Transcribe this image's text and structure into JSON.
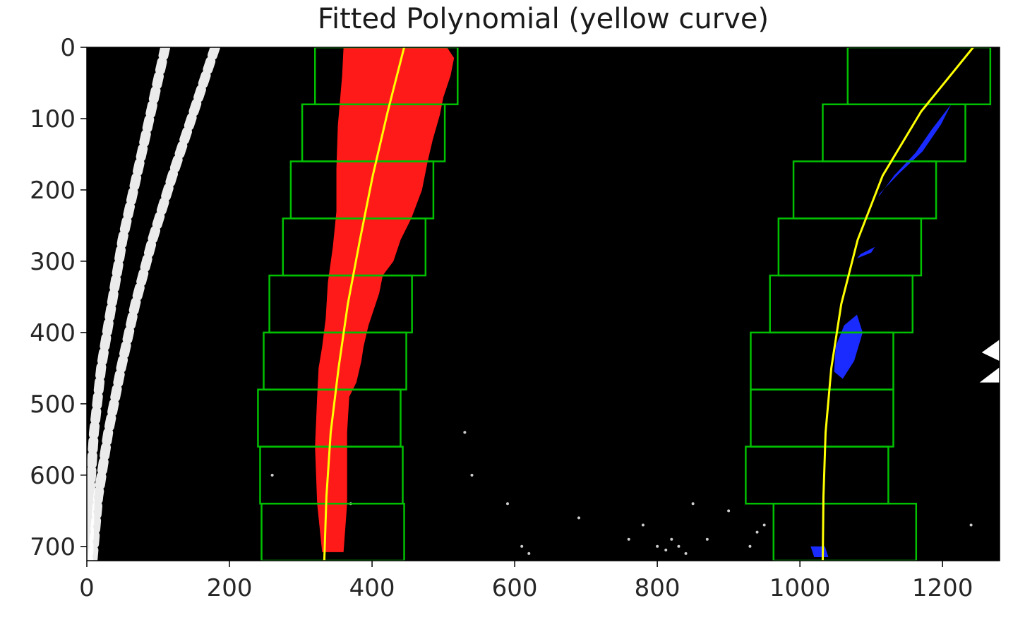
{
  "chart_data": {
    "type": "scatter",
    "title": "Fitted Polynomial (yellow curve)",
    "xlabel": "",
    "ylabel": "",
    "xlim": [
      0,
      1280
    ],
    "ylim": [
      720,
      0
    ],
    "x_ticks": [
      0,
      200,
      400,
      600,
      800,
      1000,
      1200
    ],
    "y_ticks": [
      0,
      100,
      200,
      300,
      400,
      500,
      600,
      700
    ],
    "background": "#000000",
    "colors": {
      "left_lane_pixels": "#ff1a1a",
      "right_lane_pixels": "#1a2bff",
      "fit_curve": "#ffff00",
      "window_boxes": "#00c000",
      "other_pixels": "#ffffff"
    },
    "fits": [
      {
        "name": "",
        "x": [
          445,
          422,
          401,
          383,
          366,
          353,
          342,
          336,
          333
        ],
        "y": [
          0,
          90,
          180,
          270,
          360,
          450,
          540,
          630,
          720
        ]
      },
      {
        "name": "",
        "x": [
          1243,
          1170,
          1116,
          1081,
          1058,
          1044,
          1036,
          1033,
          1032
        ],
        "y": [
          0,
          90,
          180,
          270,
          360,
          450,
          540,
          630,
          720
        ]
      }
    ],
    "left_windows": [
      {
        "x0": 320,
        "x1": 520,
        "y0": 0,
        "y1": 80
      },
      {
        "x0": 302,
        "x1": 502,
        "y0": 80,
        "y1": 160
      },
      {
        "x0": 286,
        "x1": 486,
        "y0": 160,
        "y1": 240
      },
      {
        "x0": 275,
        "x1": 475,
        "y0": 240,
        "y1": 320
      },
      {
        "x0": 256,
        "x1": 456,
        "y0": 320,
        "y1": 400
      },
      {
        "x0": 248,
        "x1": 448,
        "y0": 400,
        "y1": 480
      },
      {
        "x0": 240,
        "x1": 440,
        "y0": 480,
        "y1": 560
      },
      {
        "x0": 243,
        "x1": 443,
        "y0": 560,
        "y1": 640
      },
      {
        "x0": 245,
        "x1": 445,
        "y0": 640,
        "y1": 720
      }
    ],
    "right_windows": [
      {
        "x0": 1067,
        "x1": 1267,
        "y0": 0,
        "y1": 80
      },
      {
        "x0": 1032,
        "x1": 1232,
        "y0": 80,
        "y1": 160
      },
      {
        "x0": 991,
        "x1": 1191,
        "y0": 160,
        "y1": 240
      },
      {
        "x0": 970,
        "x1": 1170,
        "y0": 240,
        "y1": 320
      },
      {
        "x0": 958,
        "x1": 1158,
        "y0": 320,
        "y1": 400
      },
      {
        "x0": 931,
        "x1": 1131,
        "y0": 400,
        "y1": 480
      },
      {
        "x0": 931,
        "x1": 1131,
        "y0": 480,
        "y1": 560
      },
      {
        "x0": 924,
        "x1": 1124,
        "y0": 560,
        "y1": 640
      },
      {
        "x0": 963,
        "x1": 1163,
        "y0": 640,
        "y1": 720
      }
    ],
    "left_pixels_outline": {
      "x": [
        360,
        505,
        515,
        510,
        500,
        495,
        485,
        478,
        470,
        455,
        440,
        430,
        415,
        410,
        405,
        395,
        388,
        385,
        378,
        368,
        365,
        365,
        360,
        330,
        323,
        320,
        323,
        325,
        330,
        335,
        338,
        345,
        350,
        350,
        352,
        358,
        360
      ],
      "y": [
        0,
        0,
        15,
        40,
        70,
        95,
        130,
        160,
        200,
        240,
        270,
        300,
        320,
        345,
        360,
        390,
        420,
        440,
        470,
        490,
        540,
        640,
        708,
        708,
        640,
        560,
        490,
        450,
        420,
        380,
        330,
        280,
        230,
        170,
        110,
        40,
        0
      ]
    },
    "right_pixels_blobs": [
      {
        "x": [
          1212,
          1185,
          1162,
          1132,
          1110,
          1112,
          1140,
          1172,
          1198,
          1212
        ],
        "y": [
          80,
          115,
          148,
          180,
          210,
          205,
          176,
          146,
          108,
          80
        ]
      },
      {
        "x": [
          1080,
          1088,
          1076,
          1060,
          1048,
          1050,
          1062,
          1080
        ],
        "y": [
          375,
          400,
          440,
          465,
          455,
          420,
          390,
          375
        ]
      },
      {
        "x": [
          1085,
          1105,
          1100,
          1080,
          1085
        ],
        "y": [
          290,
          280,
          288,
          296,
          290
        ]
      },
      {
        "x": [
          1015,
          1035,
          1040,
          1020,
          1015
        ],
        "y": [
          700,
          700,
          715,
          715,
          700
        ]
      }
    ],
    "white_pixel_streaks": [
      {
        "x": [
          110,
          90,
          70,
          50,
          35,
          20,
          10,
          4,
          2
        ],
        "y": [
          0,
          90,
          180,
          270,
          360,
          450,
          540,
          630,
          720
        ]
      },
      {
        "x": [
          180,
          150,
          120,
          92,
          68,
          48,
          30,
          16,
          8
        ],
        "y": [
          0,
          90,
          180,
          270,
          360,
          450,
          540,
          630,
          720
        ]
      }
    ],
    "white_specks": {
      "x": [
        530,
        540,
        590,
        610,
        620,
        690,
        760,
        780,
        800,
        812,
        820,
        830,
        840,
        850,
        870,
        900,
        930,
        940,
        950,
        260,
        370,
        1240
      ],
      "y": [
        540,
        600,
        640,
        700,
        710,
        660,
        690,
        670,
        700,
        705,
        690,
        700,
        710,
        640,
        690,
        650,
        700,
        680,
        670,
        600,
        640,
        670
      ]
    },
    "white_edge_marks": {
      "x": [
        1280,
        1255,
        1280,
        1285,
        1252,
        1280
      ],
      "y": [
        410,
        428,
        440,
        445,
        470,
        470
      ]
    }
  }
}
